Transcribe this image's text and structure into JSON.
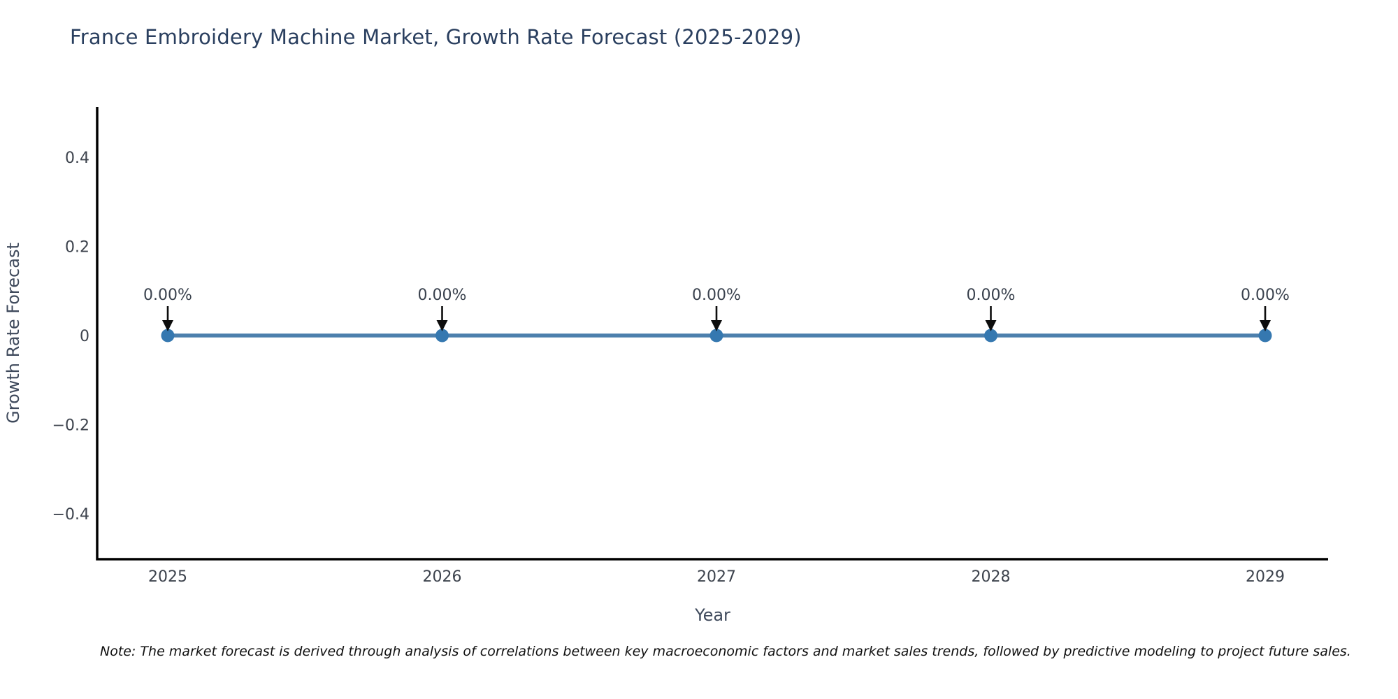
{
  "title": "France Embroidery Machine Market, Growth Rate Forecast (2025-2029)",
  "note": "Note: The market forecast is derived through analysis of correlations between key macroeconomic factors and market sales trends, followed by predictive modeling to project future sales.",
  "chart_data": {
    "type": "line",
    "title": "France Embroidery Machine Market, Growth Rate Forecast (2025-2029)",
    "xlabel": "Year",
    "ylabel": "Growth Rate Forecast",
    "categories": [
      "2025",
      "2026",
      "2027",
      "2028",
      "2029"
    ],
    "values": [
      0,
      0,
      0,
      0,
      0
    ],
    "point_labels": [
      "0.00%",
      "0.00%",
      "0.00%",
      "0.00%",
      "0.00%"
    ],
    "ylim": [
      -0.5,
      0.5
    ],
    "yticks": [
      0.4,
      0.2,
      0,
      -0.2,
      -0.4
    ],
    "ytick_labels": [
      "0.4",
      "0.2",
      "0",
      "−0.2",
      "−0.4"
    ],
    "grid": false,
    "legend": "none",
    "marker_style": "circle-with-down-arrow-annotation",
    "colors": {
      "line": "#4d80ad",
      "marker": "#3578b0",
      "arrow": "#0d0d0d",
      "axis": "#000000",
      "title": "#2a3f5f",
      "ticks": "#3d434d",
      "axis_label": "#3f4a5c",
      "annotation": "#3a424e",
      "note": "#111111",
      "background": "#ffffff"
    }
  }
}
